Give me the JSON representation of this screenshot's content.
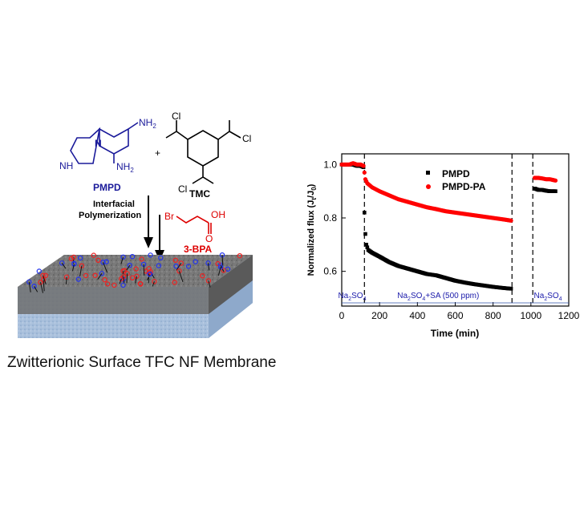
{
  "scheme": {
    "pmpd": {
      "amine1": "NH",
      "amine2": "NH",
      "sub2": "2",
      "amine3": "NH",
      "sub3": "2",
      "label": "PMPD"
    },
    "plus": "+",
    "tmc": {
      "cl1": "Cl",
      "cl2": "Cl",
      "cl3": "Cl",
      "label": "TMC"
    },
    "step1_line1": "Interfacial",
    "step1_line2": "Polymerization",
    "bpa": {
      "br": "Br",
      "oh": "OH",
      "o": "O",
      "label": "3-BPA"
    },
    "caption": "Zwitterionic Surface TFC NF Membrane"
  },
  "chart_data": {
    "type": "scatter",
    "title": "",
    "xlabel": "Time (min)",
    "ylabel": "Normalized flux (J",
    "ylabel_sub1": "t",
    "ylabel_mid": "/J",
    "ylabel_sub2": "0",
    "ylabel_end": ")",
    "xlim": [
      0,
      1200
    ],
    "ylim": [
      0.47,
      1.04
    ],
    "xticks": [
      "0",
      "200",
      "400",
      "600",
      "800",
      "1000",
      "1200"
    ],
    "xtick_values": [
      0,
      200,
      400,
      600,
      800,
      1000,
      1200
    ],
    "yticks": [
      "0.6",
      "0.8",
      "1.0"
    ],
    "ytick_values": [
      0.6,
      0.8,
      1.0
    ],
    "legend": {
      "position": "top-right"
    },
    "phase_lines_x": [
      120,
      900,
      1010
    ],
    "phase_labels": [
      {
        "text": "Na",
        "sub": "2",
        "text2": "SO",
        "sub2": "4",
        "text3": "",
        "x": 55
      },
      {
        "text": "Na",
        "sub": "2",
        "text2": "SO",
        "sub2": "4",
        "text3": "+SA (500 ppm)",
        "x": 510
      },
      {
        "text": "Na",
        "sub": "2",
        "text2": "SO",
        "sub2": "4",
        "text3": "",
        "x": 1090
      }
    ],
    "series": [
      {
        "name": "PMPD",
        "color": "#000000",
        "points": [
          [
            0,
            1.0
          ],
          [
            20,
            1.0
          ],
          [
            40,
            1.0
          ],
          [
            60,
            1.0
          ],
          [
            80,
            0.995
          ],
          [
            100,
            0.995
          ],
          [
            115,
            0.99
          ],
          [
            120,
            0.82
          ],
          [
            125,
            0.74
          ],
          [
            130,
            0.7
          ],
          [
            140,
            0.68
          ],
          [
            160,
            0.67
          ],
          [
            200,
            0.655
          ],
          [
            250,
            0.635
          ],
          [
            300,
            0.62
          ],
          [
            350,
            0.61
          ],
          [
            400,
            0.6
          ],
          [
            450,
            0.59
          ],
          [
            500,
            0.585
          ],
          [
            550,
            0.575
          ],
          [
            600,
            0.565
          ],
          [
            650,
            0.558
          ],
          [
            700,
            0.552
          ],
          [
            750,
            0.547
          ],
          [
            800,
            0.542
          ],
          [
            850,
            0.538
          ],
          [
            895,
            0.535
          ],
          [
            1020,
            0.91
          ],
          [
            1040,
            0.905
          ],
          [
            1060,
            0.905
          ],
          [
            1080,
            0.902
          ],
          [
            1100,
            0.9
          ],
          [
            1130,
            0.9
          ]
        ]
      },
      {
        "name": "PMPD-PA",
        "color": "#ff0000",
        "points": [
          [
            0,
            1.0
          ],
          [
            20,
            1.0
          ],
          [
            40,
            1.0
          ],
          [
            60,
            1.005
          ],
          [
            80,
            1.0
          ],
          [
            100,
            1.0
          ],
          [
            115,
            0.995
          ],
          [
            120,
            0.97
          ],
          [
            125,
            0.945
          ],
          [
            135,
            0.93
          ],
          [
            160,
            0.915
          ],
          [
            200,
            0.9
          ],
          [
            250,
            0.885
          ],
          [
            300,
            0.87
          ],
          [
            350,
            0.86
          ],
          [
            400,
            0.85
          ],
          [
            450,
            0.84
          ],
          [
            500,
            0.833
          ],
          [
            550,
            0.825
          ],
          [
            600,
            0.82
          ],
          [
            650,
            0.815
          ],
          [
            700,
            0.81
          ],
          [
            750,
            0.805
          ],
          [
            800,
            0.8
          ],
          [
            850,
            0.795
          ],
          [
            895,
            0.79
          ],
          [
            1020,
            0.95
          ],
          [
            1040,
            0.95
          ],
          [
            1060,
            0.948
          ],
          [
            1080,
            0.945
          ],
          [
            1100,
            0.945
          ],
          [
            1130,
            0.94
          ]
        ]
      }
    ]
  }
}
